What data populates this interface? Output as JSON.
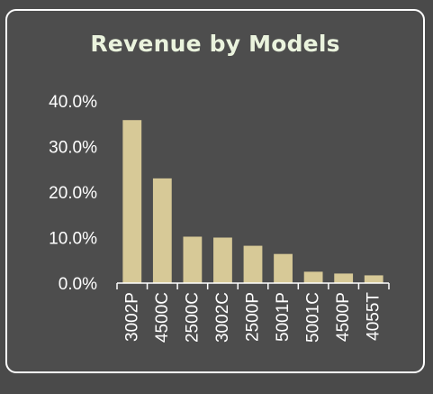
{
  "chart_data": {
    "type": "bar",
    "title": "Revenue by Models",
    "xlabel": "",
    "ylabel": "",
    "categories": [
      "3002P",
      "4500C",
      "2500C",
      "3002C",
      "2500P",
      "5001P",
      "5001C",
      "4500P",
      "4055T"
    ],
    "values": [
      35.8,
      23.0,
      10.2,
      10.0,
      8.2,
      6.4,
      2.5,
      2.1,
      1.7
    ],
    "y_ticks": [
      "0.0%",
      "10.0%",
      "20.0%",
      "30.0%",
      "40.0%"
    ],
    "ylim": [
      0,
      40
    ],
    "grid": false,
    "legend": "none",
    "bar_color": "#d7c997",
    "axis_color": "#ffffff",
    "title_color": "#eaf3dd"
  }
}
